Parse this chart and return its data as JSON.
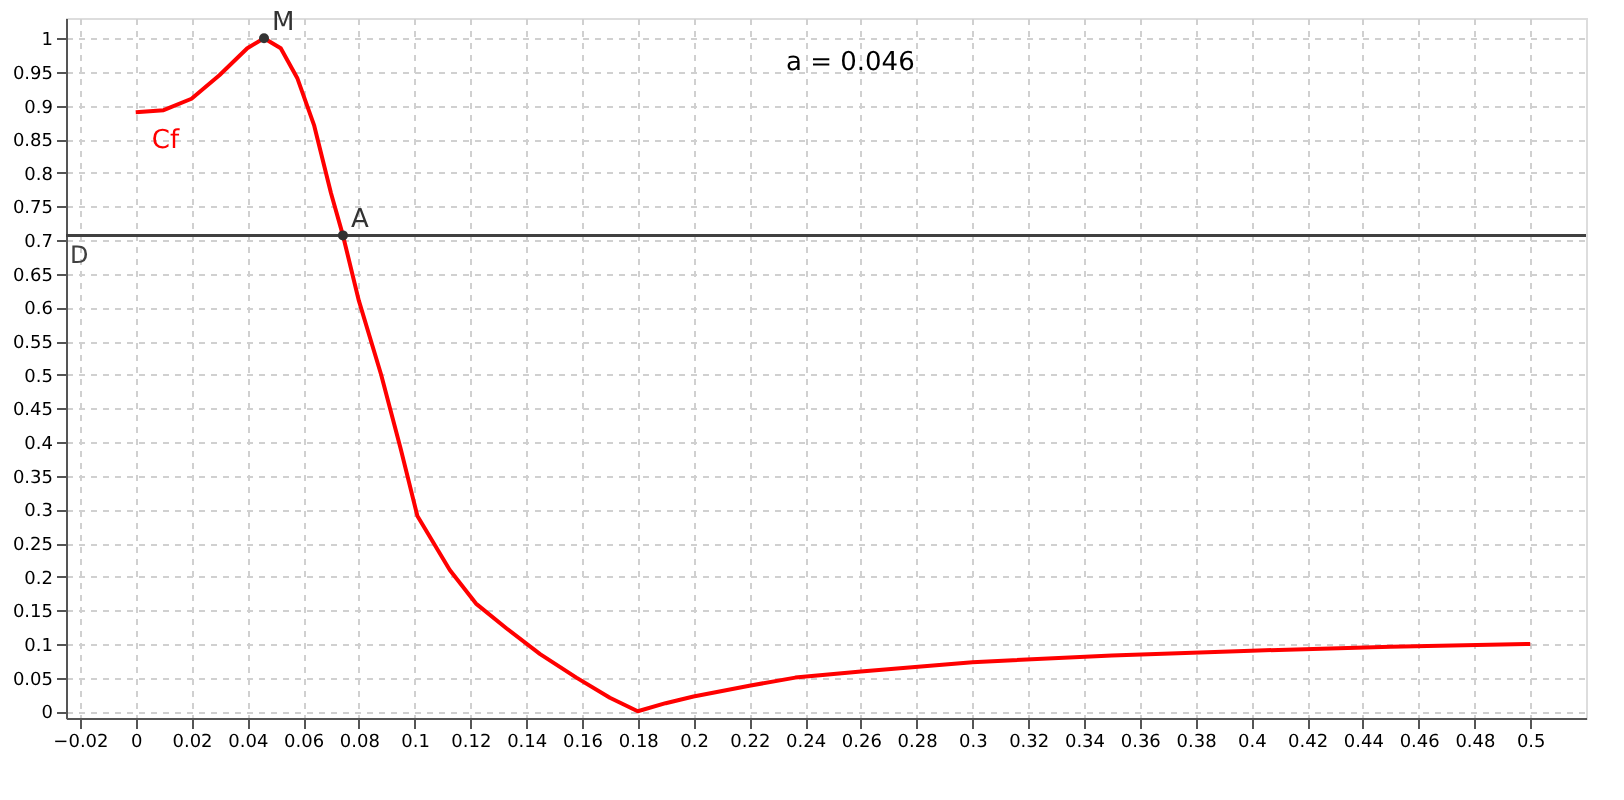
{
  "chart_data": {
    "type": "line",
    "xlim": [
      -0.025,
      0.52
    ],
    "ylim": [
      -0.01,
      1.03
    ],
    "xticks": [
      -0.02,
      0,
      0.02,
      0.04,
      0.06,
      0.08,
      0.1,
      0.12,
      0.14,
      0.16,
      0.18,
      0.2,
      0.22,
      0.24,
      0.26,
      0.28,
      0.3,
      0.32,
      0.34,
      0.36,
      0.38,
      0.4,
      0.42,
      0.44,
      0.46,
      0.48,
      0.5
    ],
    "yticks": [
      0,
      0.05,
      0.1,
      0.15,
      0.2,
      0.25,
      0.3,
      0.35,
      0.4,
      0.45,
      0.5,
      0.55,
      0.6,
      0.65,
      0.7,
      0.75,
      0.8,
      0.85,
      0.9,
      0.95,
      1
    ],
    "grid": true,
    "marker": "none",
    "line_style": "solid",
    "series": [
      {
        "name": "Cf",
        "color": "#ff0000",
        "x": [
          0,
          0.01,
          0.02,
          0.03,
          0.04,
          0.046,
          0.052,
          0.058,
          0.064,
          0.07,
          0.0743,
          0.08,
          0.088,
          0.095,
          0.101,
          0.1126,
          0.122,
          0.133,
          0.145,
          0.158,
          0.17,
          0.18,
          0.19,
          0.2,
          0.22,
          0.2365,
          0.26,
          0.3,
          0.35,
          0.4,
          0.45,
          0.5
        ],
        "values": [
          0.89,
          0.893,
          0.91,
          0.945,
          0.985,
          1.0,
          0.985,
          0.94,
          0.87,
          0.77,
          0.707,
          0.61,
          0.5,
          0.39,
          0.29,
          0.21,
          0.16,
          0.123,
          0.085,
          0.05,
          0.02,
          0.0,
          0.012,
          0.022,
          0.038,
          0.05,
          0.059,
          0.073,
          0.083,
          0.09,
          0.096,
          0.1
        ]
      }
    ],
    "ref_lines": [
      {
        "axis": "y",
        "value": 0.707,
        "label": "D",
        "color": "#404040"
      }
    ],
    "annotations": [
      {
        "text": "M",
        "x": 0.046,
        "y": 1.0
      },
      {
        "text": "A",
        "x": 0.0743,
        "y": 0.707
      },
      "a = 0.046"
    ]
  }
}
